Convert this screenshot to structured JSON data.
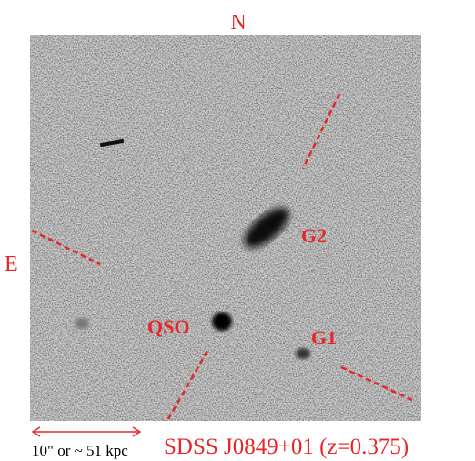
{
  "image": {
    "title": "SDSS J0849+01 (z=0.375)",
    "compass": {
      "north": "N",
      "east": "E"
    },
    "labels": {
      "g2": "G2",
      "qso": "QSO",
      "g1": "G1"
    },
    "scale_bar": "10\" or ~ 51 kpc"
  }
}
